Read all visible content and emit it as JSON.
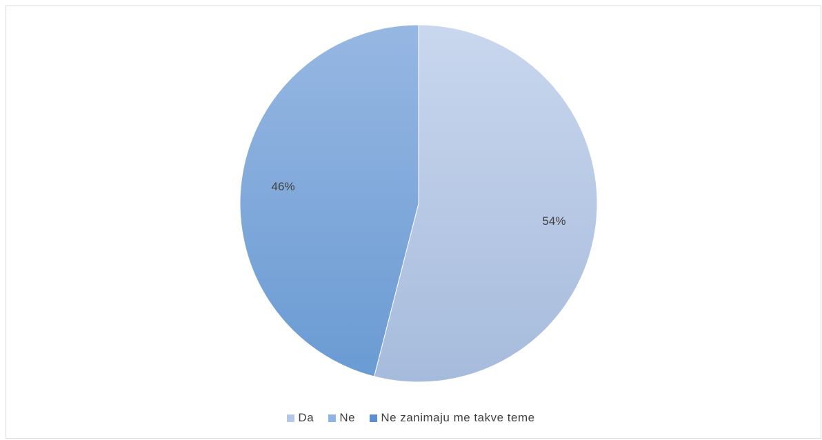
{
  "chart_data": {
    "type": "pie",
    "title": "",
    "categories": [
      "Da",
      "Ne",
      "Ne zanimaju me takve teme"
    ],
    "values": [
      54,
      46,
      0
    ],
    "data_labels": [
      "54%",
      "46%",
      ""
    ],
    "colors": [
      "#b4c7e7",
      "#8fb4e3",
      "#5b8fd0"
    ],
    "legend_position": "bottom"
  },
  "legend": {
    "items": [
      {
        "label": "Da",
        "color": "#b4c7e7"
      },
      {
        "label": "Ne",
        "color": "#8fb4e3"
      },
      {
        "label": "Ne zanimaju me takve teme",
        "color": "#5b8fd0"
      }
    ]
  }
}
